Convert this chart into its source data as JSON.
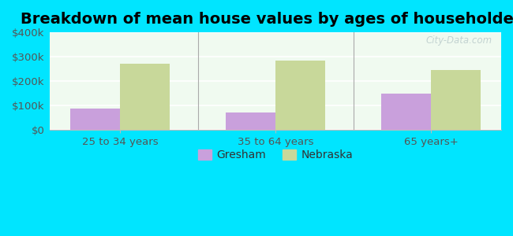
{
  "title": "Breakdown of mean house values by ages of householders",
  "categories": [
    "25 to 34 years",
    "35 to 64 years",
    "65 years+"
  ],
  "gresham_values": [
    87000,
    72000,
    148000
  ],
  "nebraska_values": [
    270000,
    285000,
    245000
  ],
  "gresham_color": "#c9a0dc",
  "nebraska_color": "#c8d89a",
  "background_outer": "#00e5ff",
  "background_plot": "#e8f5e0",
  "ylim": [
    0,
    400000
  ],
  "yticks": [
    0,
    100000,
    200000,
    300000,
    400000
  ],
  "ytick_labels": [
    "$0",
    "$100k",
    "$200k",
    "$300k",
    "$400k"
  ],
  "bar_width": 0.32,
  "legend_labels": [
    "Gresham",
    "Nebraska"
  ],
  "watermark": "City-Data.com",
  "title_fontsize": 14,
  "tick_fontsize": 9.5,
  "legend_fontsize": 10
}
